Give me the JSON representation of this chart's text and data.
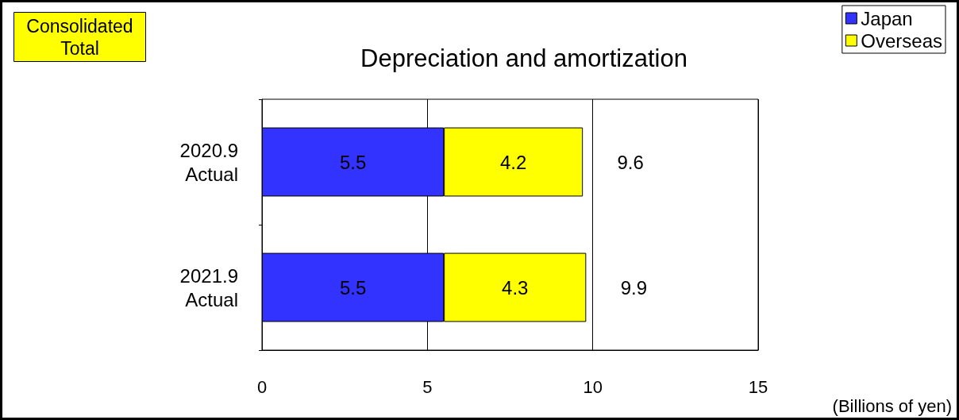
{
  "chart_data": {
    "type": "bar",
    "title": "Depreciation and amortization",
    "xlabel": "(Billions of yen)",
    "orientation": "horizontal",
    "stacked": true,
    "categories": [
      "2020.9\nActual",
      "2021.9\nActual"
    ],
    "series": [
      {
        "name": "Japan",
        "color": "#3333ff",
        "values": [
          5.5,
          5.5
        ]
      },
      {
        "name": "Overseas",
        "color": "#ffff00",
        "values": [
          4.2,
          4.3
        ]
      }
    ],
    "totals": [
      "9.6",
      "9.9"
    ],
    "xlim": [
      0,
      15
    ],
    "xticks": [
      0,
      5,
      10,
      15
    ],
    "grid": "x",
    "legend": "top right",
    "data_labels": true,
    "annotations": [
      "Consolidated\nTotal"
    ]
  }
}
